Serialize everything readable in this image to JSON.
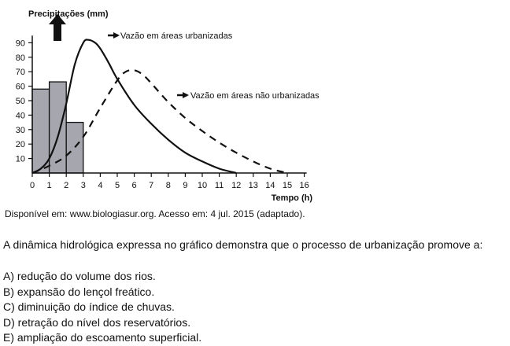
{
  "chart_data": {
    "type": "bar",
    "title": "",
    "ylabel": "Precipitações (mm)",
    "xlabel": "Tempo (h)",
    "xlim": [
      0,
      16
    ],
    "ylim": [
      0,
      95
    ],
    "xticks": [
      "0",
      "1",
      "2",
      "3",
      "4",
      "5",
      "6",
      "7",
      "8",
      "9",
      "10",
      "11",
      "12",
      "13",
      "14",
      "15",
      "16"
    ],
    "yticks": [
      "10",
      "20",
      "30",
      "40",
      "50",
      "60",
      "70",
      "80",
      "90"
    ],
    "grid": false,
    "bars": {
      "categories": [
        "0-1",
        "1-2",
        "2-3"
      ],
      "values": [
        58,
        63,
        35
      ]
    },
    "series": [
      {
        "name": "Vazão em áreas urbanizadas",
        "style": "solid",
        "x": [
          0,
          0.5,
          1,
          1.5,
          2,
          2.5,
          3,
          3.3,
          3.7,
          4,
          4.5,
          5,
          6,
          7,
          8,
          9,
          10,
          11,
          12
        ],
        "y": [
          0,
          3,
          10,
          25,
          48,
          75,
          90,
          92,
          90,
          86,
          76,
          65,
          47,
          34,
          23,
          14,
          8,
          3,
          0
        ]
      },
      {
        "name": "Vazão em áreas não urbanizadas",
        "style": "dashed",
        "x": [
          0,
          1,
          2,
          3,
          4,
          5,
          5.5,
          6,
          6.5,
          7,
          8,
          9,
          10,
          11,
          12,
          13,
          14,
          15
        ],
        "y": [
          0,
          5,
          12,
          25,
          45,
          64,
          70,
          71,
          68,
          62,
          49,
          38,
          29,
          21,
          14,
          8,
          3,
          0
        ]
      }
    ]
  },
  "source": "Disponível em: www.biologiasur.org. Acesso em: 4 jul. 2015 (adaptado).",
  "question": "A dinâmica hidrológica expressa no gráfico demonstra que o processo de urbanização promove a:",
  "options": [
    "A) redução do volume dos rios.",
    "B) expansão do lençol freático.",
    "C) diminuição do índice de chuvas.",
    "D) retração do nível dos reservatórios.",
    "E) ampliação do escoamento superficial."
  ]
}
